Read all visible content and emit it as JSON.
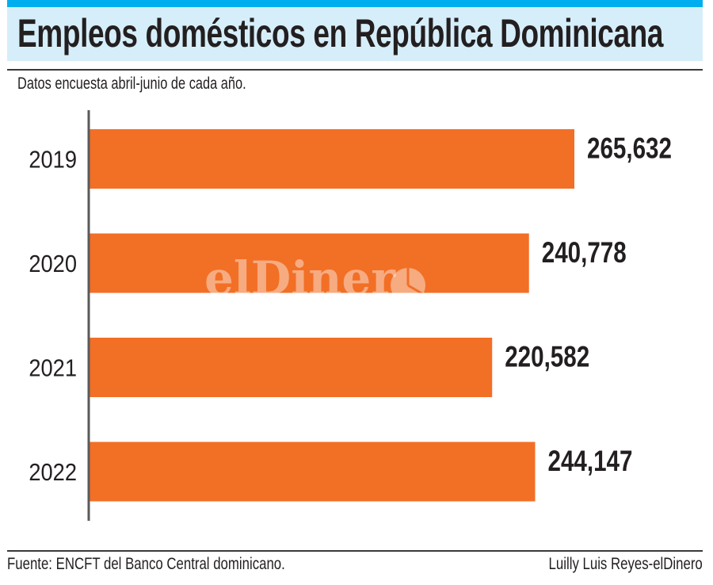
{
  "header": {
    "title": "Empleos domésticos en República Dominicana",
    "subtitle": "Datos encuesta abril-junio de cada año."
  },
  "footer": {
    "source": "Fuente: ENCFT del Banco Central dominicano.",
    "credit": "Luilly Luis Reyes-elDinero"
  },
  "watermark": "elDinero",
  "colors": {
    "bar": "#f26f26",
    "header_bg": "#d6eefa",
    "header_accent": "#00aeef",
    "axis": "#5a5a5a"
  },
  "chart_data": {
    "type": "bar",
    "orientation": "horizontal",
    "title": "Empleos domésticos en República Dominicana",
    "subtitle": "Datos encuesta abril-junio de cada año.",
    "xlabel": "",
    "ylabel": "",
    "categories": [
      "2019",
      "2020",
      "2021",
      "2022"
    ],
    "values": [
      265632,
      240778,
      220582,
      244147
    ],
    "value_labels": [
      "265,632",
      "240,778",
      "220,582",
      "244,147"
    ],
    "xlim": [
      0,
      265632
    ],
    "grid": false,
    "legend": "none"
  }
}
